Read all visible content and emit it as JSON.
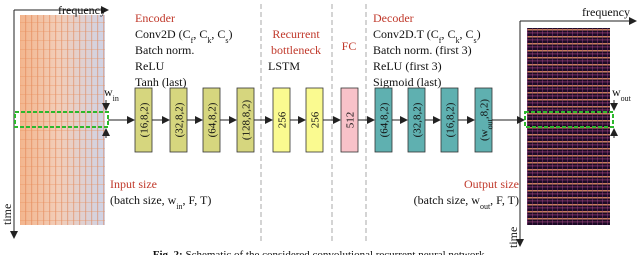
{
  "left_spectrogram": {
    "axis_x": [
      "frequency"
    ],
    "axis_y": [
      "time"
    ],
    "window": [
      "w",
      {
        "sub": "in"
      }
    ]
  },
  "right_spectrogram": {
    "axis_x": [
      "frequency"
    ],
    "axis_y": [
      "time"
    ],
    "window": [
      "w",
      {
        "sub": "out"
      }
    ]
  },
  "encoder": {
    "title": [
      "Encoder"
    ],
    "lines": [
      [
        "Conv2D (C",
        {
          "sub": "f"
        },
        ", C",
        {
          "sub": "k"
        },
        ", C",
        {
          "sub": "s"
        },
        ")"
      ],
      [
        "Batch norm."
      ],
      [
        "ReLU"
      ],
      [
        "Tanh (last)"
      ]
    ],
    "blocks": [
      [
        "(16,8,2)"
      ],
      [
        "(32,8,2)"
      ],
      [
        "(64,8,2)"
      ],
      [
        "(128,8,2)"
      ]
    ]
  },
  "bottleneck": {
    "title": [
      [
        "Recurrent"
      ],
      [
        "bottleneck"
      ]
    ],
    "lines": [
      [
        "LSTM"
      ]
    ],
    "blocks": [
      [
        "256"
      ],
      [
        "256"
      ]
    ]
  },
  "fc": {
    "title": [
      "FC"
    ],
    "blocks": [
      [
        "512"
      ]
    ]
  },
  "decoder": {
    "title": [
      "Decoder"
    ],
    "lines": [
      [
        "Conv2D.T (C",
        {
          "sub": "f"
        },
        ", C",
        {
          "sub": "k"
        },
        ", C",
        {
          "sub": "s"
        },
        ")"
      ],
      [
        "Batch norm. (first 3)"
      ],
      [
        "ReLU (first 3)"
      ],
      [
        "Sigmoid (last)"
      ]
    ],
    "blocks": [
      [
        "(64,8,2)"
      ],
      [
        "(32,8,2)"
      ],
      [
        "(16,8,2)"
      ],
      [
        "(w",
        {
          "sub": "out"
        },
        ",8,2)"
      ]
    ]
  },
  "input": {
    "title": [
      "Input size"
    ],
    "shape": [
      "(batch size, w",
      {
        "sub": "in"
      },
      ", F, T)"
    ]
  },
  "output": {
    "title": [
      "Output size"
    ],
    "shape": [
      "(batch size, w",
      {
        "sub": "out"
      },
      ", F, T)"
    ]
  },
  "caption": [
    {
      "bold": "Fig. 2:"
    },
    " Schematic of the considered convolutional recurrent neural network."
  ]
}
